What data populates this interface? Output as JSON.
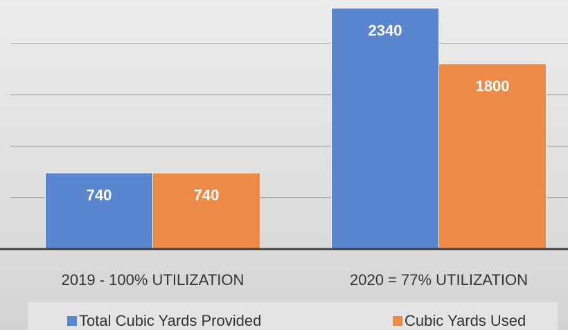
{
  "chart_data": {
    "type": "bar",
    "categories": [
      "2019 - 100% UTILIZATION",
      "2020 = 77% UTILIZATION"
    ],
    "series": [
      {
        "name": "Total Cubic Yards Provided",
        "color": "#5a86cf",
        "values": [
          740,
          2340
        ]
      },
      {
        "name": "Cubic Yards Used",
        "color": "#ee8a47",
        "values": [
          740,
          1800
        ]
      }
    ],
    "ylim": [
      0,
      2420
    ],
    "yticks": [
      0,
      500,
      1000,
      1500,
      2000
    ],
    "grid": true,
    "legend": "bottom"
  }
}
